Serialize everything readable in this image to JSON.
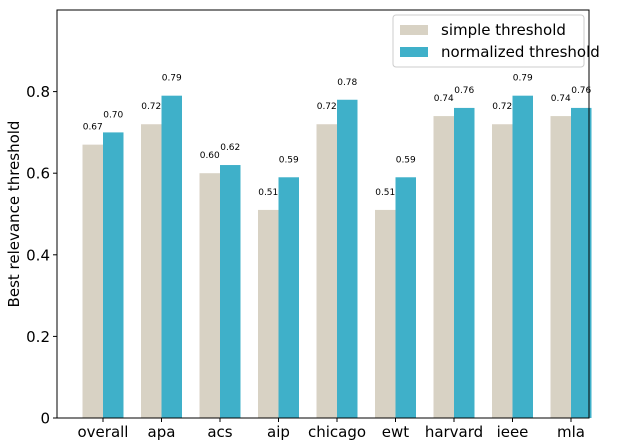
{
  "chart_data": {
    "type": "bar",
    "title": "",
    "xlabel": "",
    "ylabel": "Best relevance threshold",
    "ylim": [
      0,
      1.0
    ],
    "yticks": [
      "0",
      "0.2",
      "0.4",
      "0.6",
      "0.8"
    ],
    "ytick_values": [
      0,
      0.2,
      0.4,
      0.6,
      0.8
    ],
    "grid": false,
    "legend_position": "top-right",
    "categories": [
      "overall",
      "apa",
      "acs",
      "aip",
      "chicago",
      "ewt",
      "harvard",
      "ieee",
      "mla"
    ],
    "series": [
      {
        "name": "simple threshold",
        "color": "#d8d2c4",
        "values": [
          0.67,
          0.72,
          0.6,
          0.51,
          0.72,
          0.51,
          0.74,
          0.72,
          0.74
        ],
        "labels": [
          "0.67",
          "0.72",
          "0.60",
          "0.51",
          "0.72",
          "0.51",
          "0.74",
          "0.72",
          "0.74"
        ]
      },
      {
        "name": "normalized threshold",
        "color": "#3fb0c9",
        "values": [
          0.7,
          0.79,
          0.62,
          0.59,
          0.78,
          0.59,
          0.76,
          0.79,
          0.76
        ],
        "labels": [
          "0.70",
          "0.79",
          "0.62",
          "0.59",
          "0.78",
          "0.59",
          "0.76",
          "0.79",
          "0.76"
        ]
      }
    ]
  }
}
